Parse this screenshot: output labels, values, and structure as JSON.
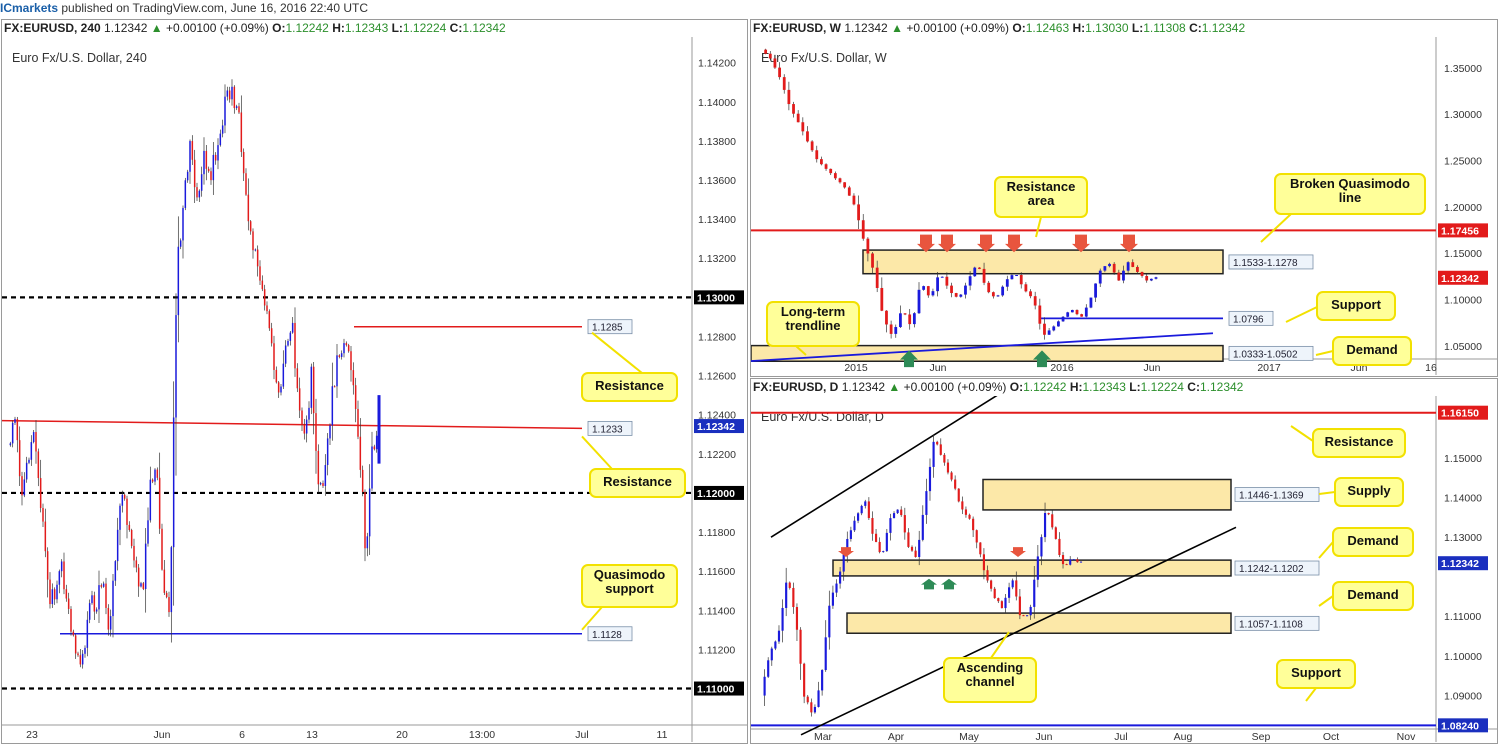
{
  "header": {
    "brand": "ICmarkets",
    "published": " published on TradingView.com, June 16, 2016 22:40 UTC"
  },
  "panels": [
    {
      "id": "h4",
      "symbol": "FX:EURUSD, 240",
      "last": "1.12342",
      "change": "+0.00100 (+0.09%)",
      "ohlc": {
        "o": "1.12242",
        "h": "1.12343",
        "l": "1.12224",
        "c": "1.12342"
      },
      "chart_title": "Euro Fx/U.S. Dollar, 240"
    },
    {
      "id": "weekly",
      "symbol": "FX:EURUSD, W",
      "last": "1.12342",
      "change": "+0.00100 (+0.09%)",
      "ohlc": {
        "o": "1.12463",
        "h": "1.13030",
        "l": "1.11308",
        "c": "1.12342"
      },
      "chart_title": "Euro Fx/U.S. Dollar, W"
    },
    {
      "id": "daily",
      "symbol": "FX:EURUSD, D",
      "last": "1.12342",
      "change": "+0.00100 (+0.09%)",
      "ohlc": {
        "o": "1.12242",
        "h": "1.12343",
        "l": "1.12224",
        "c": "1.12342"
      },
      "chart_title": "Euro Fx/U.S. Dollar, D"
    }
  ],
  "chart_data": [
    {
      "type": "candlestick",
      "title": "Euro Fx/U.S. Dollar, 240",
      "ylim": [
        1.1088,
        1.1428
      ],
      "y_ticks": [
        "1.14200",
        "1.14000",
        "1.13800",
        "1.13600",
        "1.13400",
        "1.13200",
        "1.13000",
        "1.12800",
        "1.12600",
        "1.12400",
        "1.12342",
        "1.12200",
        "1.12000",
        "1.11800",
        "1.11600",
        "1.11400",
        "1.11200",
        "1.11000"
      ],
      "x_ticks": [
        "23",
        "Jun",
        "6",
        "13",
        "20",
        "13:00",
        "Jul",
        "11"
      ],
      "levels": [
        {
          "price": 1.13,
          "style": "dashed",
          "label": "1.13000"
        },
        {
          "price": 1.12,
          "style": "dashed",
          "label": "1.12000"
        },
        {
          "price": 1.11,
          "style": "dashed",
          "label": "1.11000"
        },
        {
          "price": 1.1285,
          "style": "red",
          "label": "1.1285"
        },
        {
          "price": 1.1233,
          "style": "red",
          "label": "1.1233"
        },
        {
          "price": 1.1128,
          "style": "blue",
          "label": "1.1128"
        }
      ],
      "annotations": [
        "Resistance",
        "Resistance",
        "Quasimodo support"
      ],
      "last_price": "1.12342"
    },
    {
      "type": "candlestick",
      "title": "Euro Fx/U.S. Dollar, W",
      "ylim": [
        1.0271,
        1.3725
      ],
      "y_ticks": [
        "1.35000",
        "1.30000",
        "1.25000",
        "1.20000",
        "1.17456",
        "1.15000",
        "1.12342",
        "1.10000",
        "1.05000"
      ],
      "x_ticks": [
        "2015",
        "Jun",
        "2016",
        "Jun",
        "2017",
        "Jun",
        "16"
      ],
      "zones": [
        {
          "range": "1.1533-1.1278"
        },
        {
          "range": "1.0333-1.0502"
        }
      ],
      "levels": [
        {
          "price": 1.17456,
          "style": "red",
          "label": "1.17456"
        },
        {
          "price": 1.0796,
          "style": "blue",
          "label": "1.0796"
        }
      ],
      "annotations": [
        "Resistance area",
        "Broken Quasimodo line",
        "Support",
        "Long-term trendline",
        "Demand"
      ],
      "last_price": "1.12342"
    },
    {
      "type": "candlestick",
      "title": "Euro Fx/U.S. Dollar, D",
      "ylim": [
        1.0797,
        1.1637
      ],
      "y_ticks": [
        "1.16150",
        "1.15000",
        "1.14000",
        "1.13000",
        "1.12342",
        "1.11000",
        "1.10000",
        "1.09000",
        "1.08240"
      ],
      "x_ticks": [
        "Mar",
        "Apr",
        "May",
        "Jun",
        "Jul",
        "Aug",
        "Sep",
        "Oct",
        "Nov"
      ],
      "zones": [
        {
          "range": "1.1446-1.1369"
        },
        {
          "range": "1.1242-1.1202"
        },
        {
          "range": "1.1057-1.1108"
        }
      ],
      "levels": [
        {
          "price": 1.1615,
          "style": "red",
          "label": "1.16150"
        },
        {
          "price": 1.0824,
          "style": "blue",
          "label": "1.08240"
        }
      ],
      "annotations": [
        "Resistance",
        "Supply",
        "Demand",
        "Demand",
        "Ascending channel",
        "Support"
      ],
      "last_price": "1.12342"
    }
  ],
  "colors": {
    "up": "#1a1adc",
    "down": "#e21b1b",
    "zone": "#fce8a8",
    "callout": "#ffff99",
    "callout_border": "#f2e100"
  }
}
